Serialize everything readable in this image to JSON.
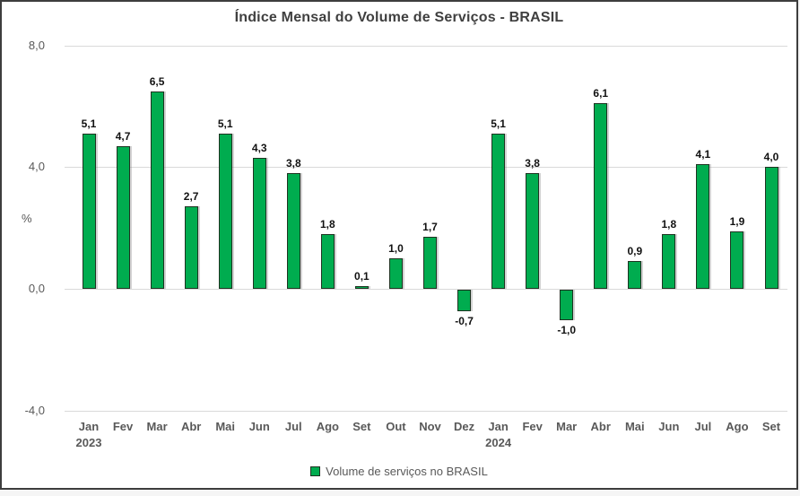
{
  "chart_data": {
    "type": "bar",
    "title": "Índice Mensal do Volume de Serviços - BRASIL",
    "ylabel": "%",
    "xlabel": "",
    "categories": [
      {
        "month": "Jan",
        "year": "2023"
      },
      {
        "month": "Fev"
      },
      {
        "month": "Mar"
      },
      {
        "month": "Abr"
      },
      {
        "month": "Mai"
      },
      {
        "month": "Jun"
      },
      {
        "month": "Jul"
      },
      {
        "month": "Ago"
      },
      {
        "month": "Set"
      },
      {
        "month": "Out"
      },
      {
        "month": "Nov"
      },
      {
        "month": "Dez"
      },
      {
        "month": "Jan",
        "year": "2024"
      },
      {
        "month": "Fev"
      },
      {
        "month": "Mar"
      },
      {
        "month": "Abr"
      },
      {
        "month": "Mai"
      },
      {
        "month": "Jun"
      },
      {
        "month": "Jul"
      },
      {
        "month": "Ago"
      },
      {
        "month": "Set"
      }
    ],
    "values": [
      5.1,
      4.7,
      6.5,
      2.7,
      5.1,
      4.3,
      3.8,
      1.8,
      0.1,
      1.0,
      1.7,
      -0.7,
      5.1,
      3.8,
      -1.0,
      6.1,
      0.9,
      1.8,
      4.1,
      1.9,
      4.0
    ],
    "value_labels": [
      "5,1",
      "4,7",
      "6,5",
      "2,7",
      "5,1",
      "4,3",
      "3,8",
      "1,8",
      "0,1",
      "1,0",
      "1,7",
      "-0,7",
      "5,1",
      "3,8",
      "-1,0",
      "6,1",
      "0,9",
      "1,8",
      "4,1",
      "1,9",
      "4,0"
    ],
    "y_ticks": [
      {
        "value": 8,
        "label": "8,0"
      },
      {
        "value": 4,
        "label": "4,0"
      },
      {
        "value": 0,
        "label": "0,0"
      },
      {
        "value": -4,
        "label": "-4,0"
      }
    ],
    "ylim": [
      -4.9,
      8.2
    ],
    "grid": true,
    "legend": {
      "label": "Volume de serviços no BRASIL",
      "position": "bottom"
    },
    "colors": {
      "bar_fill": "#00AC4F",
      "bar_border": "#1E3321",
      "bar_shadow": "rgba(130,130,130,0.35)",
      "gridline": "#D9D9D9",
      "axis_text": "#595959",
      "title_text": "#3F3F3F",
      "value_label_text": "#111111",
      "frame_border": "#3D3D3D",
      "background": "#FFFFFF",
      "page_background": "#F5F5F5"
    }
  }
}
